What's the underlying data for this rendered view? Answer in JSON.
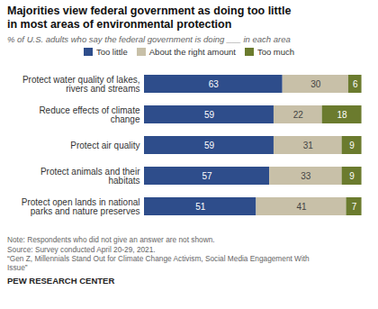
{
  "chart_data": {
    "type": "bar",
    "orientation": "horizontal",
    "stacked": true,
    "data_labels": true,
    "tick_labels": "y",
    "grid": false,
    "legend": "top",
    "title": "Majorities view federal government as doing too little\nin most areas of environmental protection",
    "subtitle": "% of U.S. adults who say the federal government is doing ___ in each area",
    "categories": [
      "Protect water quality of lakes,\nrivers and streams",
      "Reduce effects of climate\nchange",
      "Protect air quality",
      "Protect animals and their\nhabitats",
      "Protect open lands in national\nparks and nature preserves"
    ],
    "series": [
      {
        "name": "Too little",
        "color": "#2E4D8B",
        "values": [
          63,
          59,
          59,
          57,
          51
        ]
      },
      {
        "name": "About the right amount",
        "color": "#C8C0A8",
        "values": [
          30,
          22,
          31,
          33,
          41
        ]
      },
      {
        "name": "Too much",
        "color": "#6B7B2E",
        "values": [
          6,
          18,
          9,
          9,
          7
        ]
      }
    ],
    "xlim": [
      0,
      100
    ],
    "notes": [
      "Note: Respondents who did not give an answer are not shown.",
      "Source: Survey conducted April 20-29, 2021.",
      "“Gen Z, Millennials Stand Out for Climate Change Activism, Social Media Engagement With",
      "Issue”"
    ],
    "footer": "PEW RESEARCH CENTER"
  }
}
